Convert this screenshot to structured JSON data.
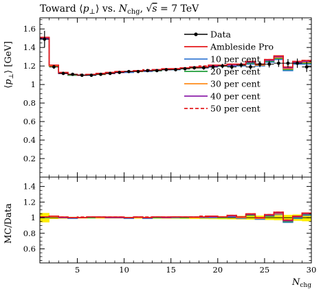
{
  "chart_data": [
    {
      "type": "line",
      "title": "Toward ⟨p⊥⟩ vs. Nchg, √s = 7 TeV",
      "ylabel": "⟨p⊥⟩ [GeV]",
      "xlim": [
        1,
        30
      ],
      "ylim": [
        0,
        1.72
      ],
      "yticks": [
        "0.2",
        "0.4",
        "0.6",
        "0.8",
        "1",
        "1.2",
        "1.4",
        "1.6"
      ],
      "x": [
        1.5,
        2.5,
        3.5,
        4.5,
        5.5,
        6.5,
        7.5,
        8.5,
        9.5,
        10.5,
        11.5,
        12.5,
        13.5,
        14.5,
        15.5,
        16.5,
        17.5,
        18.5,
        19.5,
        20.5,
        21.5,
        22.5,
        23.5,
        24.5,
        25.5,
        26.5,
        27.5,
        28.5,
        29.5
      ],
      "data": {
        "name": "Data",
        "values": [
          1.49,
          1.19,
          1.12,
          1.11,
          1.1,
          1.1,
          1.11,
          1.12,
          1.13,
          1.14,
          1.14,
          1.15,
          1.15,
          1.16,
          1.16,
          1.17,
          1.18,
          1.18,
          1.19,
          1.2,
          1.19,
          1.21,
          1.19,
          1.22,
          1.22,
          1.23,
          1.23,
          1.23,
          1.19
        ],
        "errors": [
          0.09,
          0.02,
          0.015,
          0.012,
          0.012,
          0.012,
          0.012,
          0.012,
          0.012,
          0.012,
          0.013,
          0.013,
          0.014,
          0.015,
          0.016,
          0.017,
          0.018,
          0.02,
          0.022,
          0.024,
          0.026,
          0.028,
          0.03,
          0.033,
          0.036,
          0.04,
          0.045,
          0.05,
          0.055
        ]
      },
      "series": [
        {
          "name": "Ambleside Pro",
          "color": "#e41a1c",
          "style": "solid",
          "values": [
            1.51,
            1.21,
            1.13,
            1.11,
            1.1,
            1.11,
            1.12,
            1.13,
            1.14,
            1.14,
            1.15,
            1.15,
            1.16,
            1.17,
            1.17,
            1.18,
            1.19,
            1.19,
            1.21,
            1.21,
            1.22,
            1.22,
            1.25,
            1.22,
            1.27,
            1.31,
            1.19,
            1.25,
            1.26
          ]
        },
        {
          "name": "10 per cent",
          "color": "#3a7bd5",
          "style": "solid",
          "values": [
            1.49,
            1.2,
            1.12,
            1.1,
            1.1,
            1.1,
            1.11,
            1.12,
            1.13,
            1.13,
            1.14,
            1.14,
            1.15,
            1.16,
            1.16,
            1.17,
            1.18,
            1.18,
            1.19,
            1.2,
            1.2,
            1.2,
            1.22,
            1.2,
            1.24,
            1.27,
            1.15,
            1.22,
            1.22
          ]
        },
        {
          "name": "20 per cent",
          "color": "#1f9e3a",
          "style": "solid",
          "values": [
            1.5,
            1.2,
            1.12,
            1.1,
            1.1,
            1.11,
            1.11,
            1.12,
            1.13,
            1.14,
            1.14,
            1.15,
            1.15,
            1.16,
            1.17,
            1.17,
            1.18,
            1.19,
            1.2,
            1.2,
            1.21,
            1.21,
            1.23,
            1.21,
            1.25,
            1.28,
            1.16,
            1.23,
            1.23
          ]
        },
        {
          "name": "30 per cent",
          "color": "#ff8c1a",
          "style": "solid",
          "values": [
            1.5,
            1.2,
            1.12,
            1.11,
            1.1,
            1.11,
            1.11,
            1.12,
            1.13,
            1.14,
            1.14,
            1.15,
            1.16,
            1.16,
            1.17,
            1.18,
            1.18,
            1.19,
            1.2,
            1.21,
            1.21,
            1.21,
            1.24,
            1.21,
            1.26,
            1.29,
            1.17,
            1.24,
            1.24
          ]
        },
        {
          "name": "40 per cent",
          "color": "#8b1fa9",
          "style": "solid",
          "values": [
            1.5,
            1.21,
            1.12,
            1.11,
            1.1,
            1.11,
            1.12,
            1.12,
            1.13,
            1.14,
            1.15,
            1.15,
            1.16,
            1.16,
            1.17,
            1.18,
            1.19,
            1.19,
            1.2,
            1.21,
            1.21,
            1.22,
            1.24,
            1.22,
            1.26,
            1.3,
            1.18,
            1.24,
            1.25
          ]
        },
        {
          "name": "50 per cent",
          "color": "#e41a1c",
          "style": "dashed",
          "values": [
            1.51,
            1.21,
            1.13,
            1.11,
            1.11,
            1.11,
            1.12,
            1.13,
            1.14,
            1.14,
            1.15,
            1.16,
            1.16,
            1.17,
            1.17,
            1.18,
            1.19,
            1.2,
            1.21,
            1.21,
            1.22,
            1.22,
            1.25,
            1.22,
            1.27,
            1.31,
            1.19,
            1.25,
            1.26
          ]
        }
      ],
      "legend_position": "top-right"
    },
    {
      "type": "line",
      "title": "",
      "ylabel": "MC/Data",
      "xlabel": "Nchg",
      "xlim": [
        1,
        30
      ],
      "ylim": [
        0.42,
        1.52
      ],
      "yticks": [
        "0.6",
        "0.8",
        "1",
        "1.2",
        "1.4"
      ],
      "xticks": [
        "5",
        "10",
        "15",
        "20",
        "25",
        "30"
      ],
      "band_color": "#ffee00",
      "series": [
        {
          "name": "Ambleside Pro",
          "values": [
            1.01,
            1.02,
            1.01,
            1.0,
            1.0,
            1.01,
            1.01,
            1.01,
            1.01,
            1.0,
            1.01,
            1.0,
            1.01,
            1.01,
            1.01,
            1.01,
            1.01,
            1.01,
            1.02,
            1.01,
            1.03,
            1.01,
            1.05,
            1.0,
            1.04,
            1.07,
            0.97,
            1.02,
            1.06
          ]
        },
        {
          "name": "10 per cent",
          "values": [
            1.0,
            1.01,
            1.0,
            0.99,
            1.0,
            1.0,
            1.0,
            1.0,
            1.0,
            0.99,
            1.0,
            0.99,
            1.0,
            1.0,
            1.0,
            1.0,
            1.0,
            1.0,
            1.0,
            1.0,
            1.01,
            0.99,
            1.03,
            0.98,
            1.02,
            1.04,
            0.94,
            0.99,
            1.03
          ]
        },
        {
          "name": "20 per cent",
          "values": [
            1.0,
            1.01,
            1.0,
            1.0,
            1.0,
            1.0,
            1.0,
            1.0,
            1.0,
            1.0,
            1.0,
            1.0,
            1.0,
            1.0,
            1.01,
            1.0,
            1.0,
            1.01,
            1.01,
            1.0,
            1.02,
            1.0,
            1.03,
            0.99,
            1.02,
            1.05,
            0.95,
            1.0,
            1.04
          ]
        },
        {
          "name": "30 per cent",
          "values": [
            1.01,
            1.01,
            1.0,
            1.0,
            1.0,
            1.01,
            1.0,
            1.0,
            1.0,
            1.0,
            1.0,
            1.0,
            1.01,
            1.0,
            1.01,
            1.01,
            1.0,
            1.01,
            1.01,
            1.01,
            1.02,
            1.0,
            1.04,
            0.99,
            1.03,
            1.05,
            0.96,
            1.01,
            1.05
          ]
        },
        {
          "name": "40 per cent",
          "values": [
            1.01,
            1.02,
            1.0,
            1.0,
            1.0,
            1.01,
            1.01,
            1.0,
            1.0,
            1.0,
            1.01,
            1.0,
            1.01,
            1.0,
            1.01,
            1.01,
            1.01,
            1.01,
            1.01,
            1.01,
            1.02,
            1.01,
            1.04,
            1.0,
            1.03,
            1.06,
            0.96,
            1.01,
            1.05
          ]
        },
        {
          "name": "50 per cent",
          "values": [
            1.01,
            1.02,
            1.01,
            1.0,
            1.01,
            1.01,
            1.01,
            1.01,
            1.01,
            1.0,
            1.01,
            1.01,
            1.01,
            1.01,
            1.01,
            1.01,
            1.01,
            1.02,
            1.02,
            1.01,
            1.03,
            1.01,
            1.05,
            1.0,
            1.04,
            1.07,
            0.97,
            1.02,
            1.06
          ]
        }
      ]
    }
  ]
}
